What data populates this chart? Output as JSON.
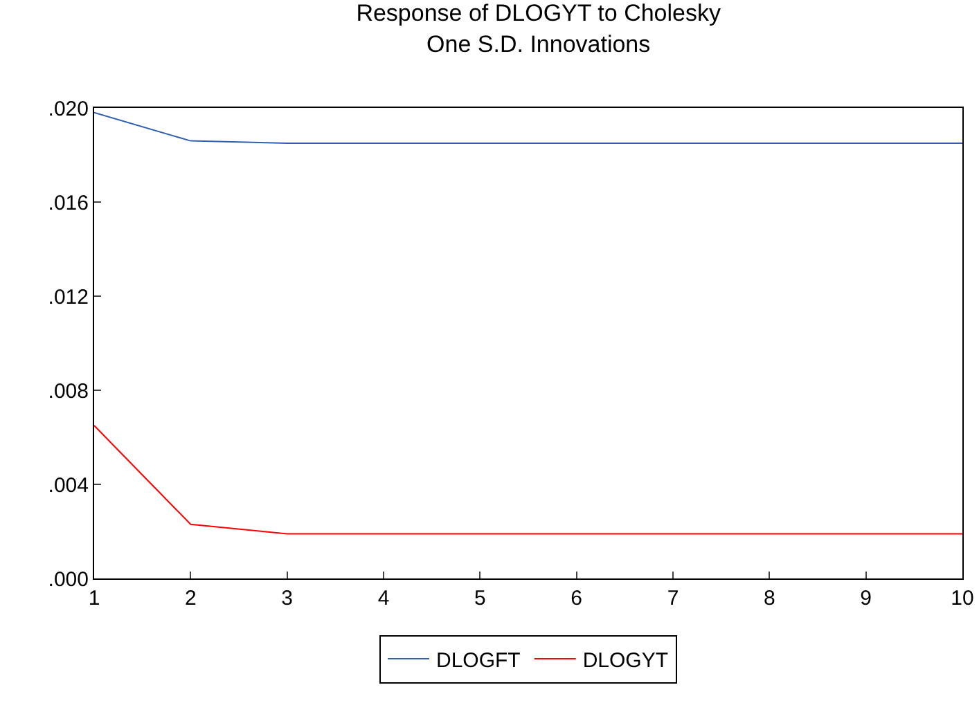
{
  "chart_data": {
    "type": "line",
    "title": "Response of DLOGYT to Cholesky\nOne S.D. Innovations",
    "x": [
      1,
      2,
      3,
      4,
      5,
      6,
      7,
      8,
      9,
      10
    ],
    "series": [
      {
        "name": "DLOGFT",
        "color": "#2e5fb0",
        "values": [
          0.0198,
          0.0186,
          0.0185,
          0.0185,
          0.0185,
          0.0185,
          0.0185,
          0.0185,
          0.0185,
          0.0185
        ]
      },
      {
        "name": "DLOGYT",
        "color": "#ff0000",
        "values": [
          0.0065,
          0.0023,
          0.0019,
          0.0019,
          0.0019,
          0.0019,
          0.0019,
          0.0019,
          0.0019,
          0.0019
        ]
      }
    ],
    "xlim": [
      1,
      10
    ],
    "xticks": [
      1,
      2,
      3,
      4,
      5,
      6,
      7,
      8,
      9,
      10
    ],
    "ylim": [
      0,
      0.02
    ],
    "yticks": [
      {
        "value": 0,
        "label": ".000"
      },
      {
        "value": 0.004,
        "label": ".004"
      },
      {
        "value": 0.008,
        "label": ".008"
      },
      {
        "value": 0.012,
        "label": ".012"
      },
      {
        "value": 0.016,
        "label": ".016"
      },
      {
        "value": 0.02,
        "label": ".020"
      }
    ],
    "grid": false,
    "legend": "bottom",
    "marker": "none",
    "line_style": "solid"
  }
}
